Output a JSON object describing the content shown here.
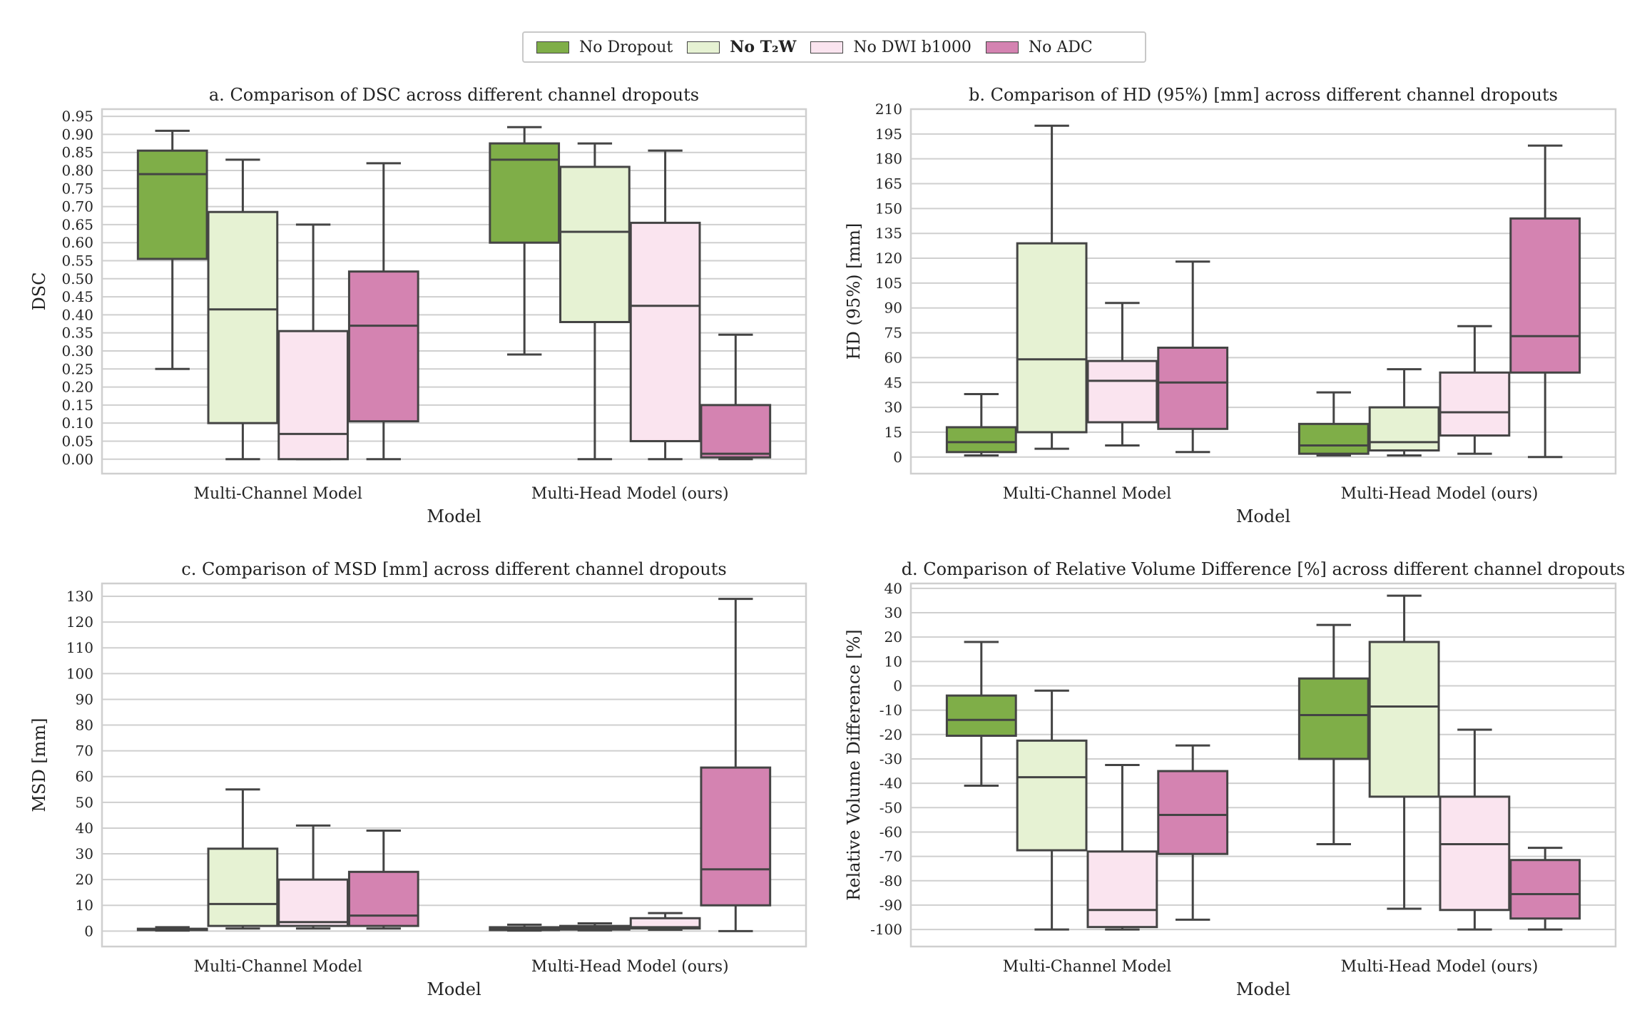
{
  "legend": {
    "items": [
      {
        "label": "No Dropout",
        "color": "#7fae48"
      },
      {
        "label": "No T₂W",
        "color": "#e6f2d3"
      },
      {
        "label": "No DWI b1000",
        "color": "#fae4ef"
      },
      {
        "label": "No ADC",
        "color": "#d483b1"
      }
    ]
  },
  "chart_data": [
    {
      "type": "box",
      "title": "a. Comparison of DSC across different channel dropouts",
      "xlabel": "Model",
      "ylabel": "DSC",
      "categories": [
        "Multi-Channel Model",
        "Multi-Head Model (ours)"
      ],
      "ylim": [
        -0.04,
        0.97
      ],
      "yticks": [
        0.0,
        0.05,
        0.1,
        0.15,
        0.2,
        0.25,
        0.3,
        0.35,
        0.4,
        0.45,
        0.5,
        0.55,
        0.6,
        0.65,
        0.7,
        0.75,
        0.8,
        0.85,
        0.9,
        0.95
      ],
      "ytick_labels": [
        "0.00",
        "0.05",
        "0.10",
        "0.15",
        "0.20",
        "0.25",
        "0.30",
        "0.35",
        "0.40",
        "0.45",
        "0.50",
        "0.55",
        "0.60",
        "0.65",
        "0.70",
        "0.75",
        "0.80",
        "0.85",
        "0.90",
        "0.95"
      ],
      "series": [
        {
          "name": "No Dropout",
          "boxes": [
            {
              "whislo": 0.25,
              "q1": 0.555,
              "med": 0.79,
              "q3": 0.855,
              "whishi": 0.91
            },
            {
              "whislo": 0.29,
              "q1": 0.6,
              "med": 0.83,
              "q3": 0.875,
              "whishi": 0.92
            }
          ]
        },
        {
          "name": "No T₂W",
          "boxes": [
            {
              "whislo": 0.0,
              "q1": 0.1,
              "med": 0.415,
              "q3": 0.685,
              "whishi": 0.83
            },
            {
              "whislo": 0.0,
              "q1": 0.38,
              "med": 0.63,
              "q3": 0.81,
              "whishi": 0.875
            }
          ]
        },
        {
          "name": "No DWI b1000",
          "boxes": [
            {
              "whislo": 0.0,
              "q1": 0.0,
              "med": 0.07,
              "q3": 0.355,
              "whishi": 0.65
            },
            {
              "whislo": 0.0,
              "q1": 0.05,
              "med": 0.425,
              "q3": 0.655,
              "whishi": 0.855
            }
          ]
        },
        {
          "name": "No ADC",
          "boxes": [
            {
              "whislo": 0.0,
              "q1": 0.105,
              "med": 0.37,
              "q3": 0.52,
              "whishi": 0.82
            },
            {
              "whislo": 0.0,
              "q1": 0.005,
              "med": 0.015,
              "q3": 0.15,
              "whishi": 0.345
            }
          ]
        }
      ]
    },
    {
      "type": "box",
      "title": "b. Comparison of HD (95%) [mm] across different channel dropouts",
      "xlabel": "Model",
      "ylabel": "HD (95%) [mm]",
      "categories": [
        "Multi-Channel Model",
        "Multi-Head Model (ours)"
      ],
      "ylim": [
        -10,
        210
      ],
      "yticks": [
        0,
        15,
        30,
        45,
        60,
        75,
        90,
        105,
        120,
        135,
        150,
        165,
        180,
        195,
        210
      ],
      "ytick_labels": [
        "0",
        "15",
        "30",
        "45",
        "60",
        "75",
        "90",
        "105",
        "120",
        "135",
        "150",
        "165",
        "180",
        "195",
        "210"
      ],
      "series": [
        {
          "name": "No Dropout",
          "boxes": [
            {
              "whislo": 1,
              "q1": 3,
              "med": 9,
              "q3": 18,
              "whishi": 38
            },
            {
              "whislo": 1,
              "q1": 2,
              "med": 7,
              "q3": 20,
              "whishi": 39
            }
          ]
        },
        {
          "name": "No T₂W",
          "boxes": [
            {
              "whislo": 5,
              "q1": 15,
              "med": 59,
              "q3": 129,
              "whishi": 200
            },
            {
              "whislo": 1,
              "q1": 4,
              "med": 9,
              "q3": 30,
              "whishi": 53
            }
          ]
        },
        {
          "name": "No DWI b1000",
          "boxes": [
            {
              "whislo": 7,
              "q1": 21,
              "med": 46,
              "q3": 58,
              "whishi": 93
            },
            {
              "whislo": 2,
              "q1": 13,
              "med": 27,
              "q3": 51,
              "whishi": 79
            }
          ]
        },
        {
          "name": "No ADC",
          "boxes": [
            {
              "whislo": 3,
              "q1": 17,
              "med": 45,
              "q3": 66,
              "whishi": 118
            },
            {
              "whislo": 0,
              "q1": 51,
              "med": 73,
              "q3": 144,
              "whishi": 188
            }
          ]
        }
      ]
    },
    {
      "type": "box",
      "title": "c. Comparison of MSD [mm] across different channel dropouts",
      "xlabel": "Model",
      "ylabel": "MSD [mm]",
      "categories": [
        "Multi-Channel Model",
        "Multi-Head Model (ours)"
      ],
      "ylim": [
        -6,
        135
      ],
      "yticks": [
        0,
        10,
        20,
        30,
        40,
        50,
        60,
        70,
        80,
        90,
        100,
        110,
        120,
        130
      ],
      "ytick_labels": [
        "0",
        "10",
        "20",
        "30",
        "40",
        "50",
        "60",
        "70",
        "80",
        "90",
        "100",
        "110",
        "120",
        "130"
      ],
      "series": [
        {
          "name": "No Dropout",
          "boxes": [
            {
              "whislo": 0.2,
              "q1": 0.4,
              "med": 0.6,
              "q3": 0.9,
              "whishi": 1.5
            },
            {
              "whislo": 0.2,
              "q1": 0.4,
              "med": 0.8,
              "q3": 1.5,
              "whishi": 2.5
            }
          ]
        },
        {
          "name": "No T₂W",
          "boxes": [
            {
              "whislo": 1,
              "q1": 2,
              "med": 10.5,
              "q3": 32,
              "whishi": 55
            },
            {
              "whislo": 0.3,
              "q1": 0.6,
              "med": 1.2,
              "q3": 2,
              "whishi": 3
            }
          ]
        },
        {
          "name": "No DWI b1000",
          "boxes": [
            {
              "whislo": 1,
              "q1": 2,
              "med": 3.5,
              "q3": 20,
              "whishi": 41
            },
            {
              "whislo": 0.5,
              "q1": 1,
              "med": 1.5,
              "q3": 5,
              "whishi": 7
            }
          ]
        },
        {
          "name": "No ADC",
          "boxes": [
            {
              "whislo": 1,
              "q1": 2,
              "med": 6,
              "q3": 23,
              "whishi": 39
            },
            {
              "whislo": 0,
              "q1": 10,
              "med": 24,
              "q3": 63.5,
              "whishi": 129
            }
          ]
        }
      ]
    },
    {
      "type": "box",
      "title": "d. Comparison of Relative Volume Difference [%] across different channel dropouts",
      "xlabel": "Model",
      "ylabel": "Relative Volume Difference [%]",
      "categories": [
        "Multi-Channel Model",
        "Multi-Head Model (ours)"
      ],
      "ylim": [
        -107,
        42
      ],
      "yticks": [
        40,
        30,
        20,
        10,
        0,
        -10,
        -20,
        -30,
        -40,
        -50,
        -60,
        -70,
        -80,
        -90,
        -100
      ],
      "ytick_labels": [
        "40",
        "30",
        "20",
        "10",
        "0",
        "-10",
        "-20",
        "-30",
        "-40",
        "-50",
        "-60",
        "-70",
        "-80",
        "-90",
        "-100"
      ],
      "series": [
        {
          "name": "No Dropout",
          "boxes": [
            {
              "whislo": -41,
              "q1": -20.5,
              "med": -14,
              "q3": -4,
              "whishi": 18
            },
            {
              "whislo": -65,
              "q1": -30,
              "med": -12,
              "q3": 3,
              "whishi": 25
            }
          ]
        },
        {
          "name": "No T₂W",
          "boxes": [
            {
              "whislo": -100,
              "q1": -67.5,
              "med": -37.5,
              "q3": -22.5,
              "whishi": -2
            },
            {
              "whislo": -91.5,
              "q1": -45.5,
              "med": -8.5,
              "q3": 18,
              "whishi": 37
            }
          ]
        },
        {
          "name": "No DWI b1000",
          "boxes": [
            {
              "whislo": -100,
              "q1": -99,
              "med": -92,
              "q3": -68,
              "whishi": -32.5
            },
            {
              "whislo": -100,
              "q1": -92,
              "med": -65,
              "q3": -45.5,
              "whishi": -18
            }
          ]
        },
        {
          "name": "No ADC",
          "boxes": [
            {
              "whislo": -96,
              "q1": -69,
              "med": -53,
              "q3": -35,
              "whishi": -24.5
            },
            {
              "whislo": -100,
              "q1": -95.5,
              "med": -85.5,
              "q3": -71.5,
              "whishi": -66.5
            }
          ]
        }
      ]
    }
  ]
}
